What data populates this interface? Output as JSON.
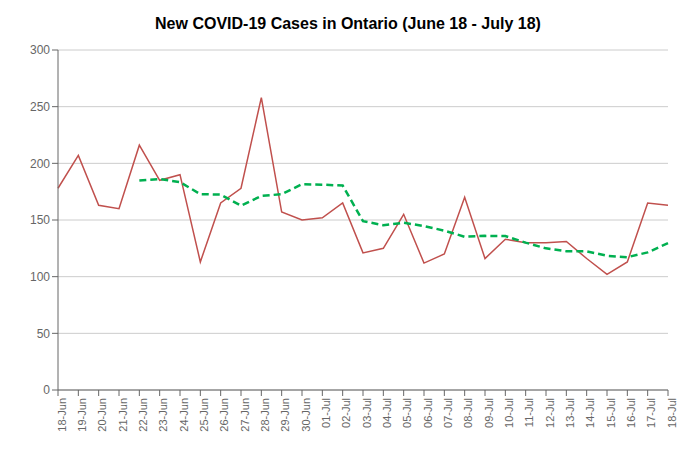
{
  "chart_data": {
    "type": "line",
    "title": "New COVID-19 Cases in Ontario (June 18 - July 18)",
    "categories": [
      "18-Jun",
      "19-Jun",
      "20-Jun",
      "21-Jun",
      "22-Jun",
      "23-Jun",
      "24-Jun",
      "25-Jun",
      "26-Jun",
      "27-Jun",
      "28-Jun",
      "29-Jun",
      "30-Jun",
      "01-Jul",
      "02-Jul",
      "03-Jul",
      "04-Jul",
      "05-Jul",
      "06-Jul",
      "07-Jul",
      "08-Jul",
      "09-Jul",
      "10-Jul",
      "11-Jul",
      "12-Jul",
      "13-Jul",
      "14-Jul",
      "15-Jul",
      "16-Jul",
      "17-Jul",
      "18-Jul"
    ],
    "series": [
      {
        "color": "#c0504d",
        "line_style": "solid",
        "values": [
          178,
          207,
          163,
          160,
          216,
          185,
          190,
          113,
          165,
          178,
          258,
          157,
          150,
          152,
          165,
          121,
          125,
          155,
          112,
          120,
          170,
          116,
          133,
          130,
          130,
          131,
          116,
          102,
          113,
          165,
          163
        ]
      },
      {
        "color": "#00b050",
        "line_style": "dashed",
        "values": [
          null,
          null,
          null,
          null,
          184.8,
          186.2,
          183.4,
          172.8,
          172.4,
          162.6,
          171.2,
          172.8,
          181.6,
          181.2,
          180.4,
          149.0,
          145.4,
          147.6,
          144.6,
          140.6,
          135.2,
          136.0,
          135.8,
          130.0,
          125.0,
          122.4,
          122.4,
          118.4,
          117.2,
          121.4,
          129.6
        ]
      }
    ],
    "ylim": [
      0,
      300
    ],
    "yticks": [
      0,
      50,
      100,
      150,
      200,
      250,
      300
    ],
    "grid": true
  }
}
